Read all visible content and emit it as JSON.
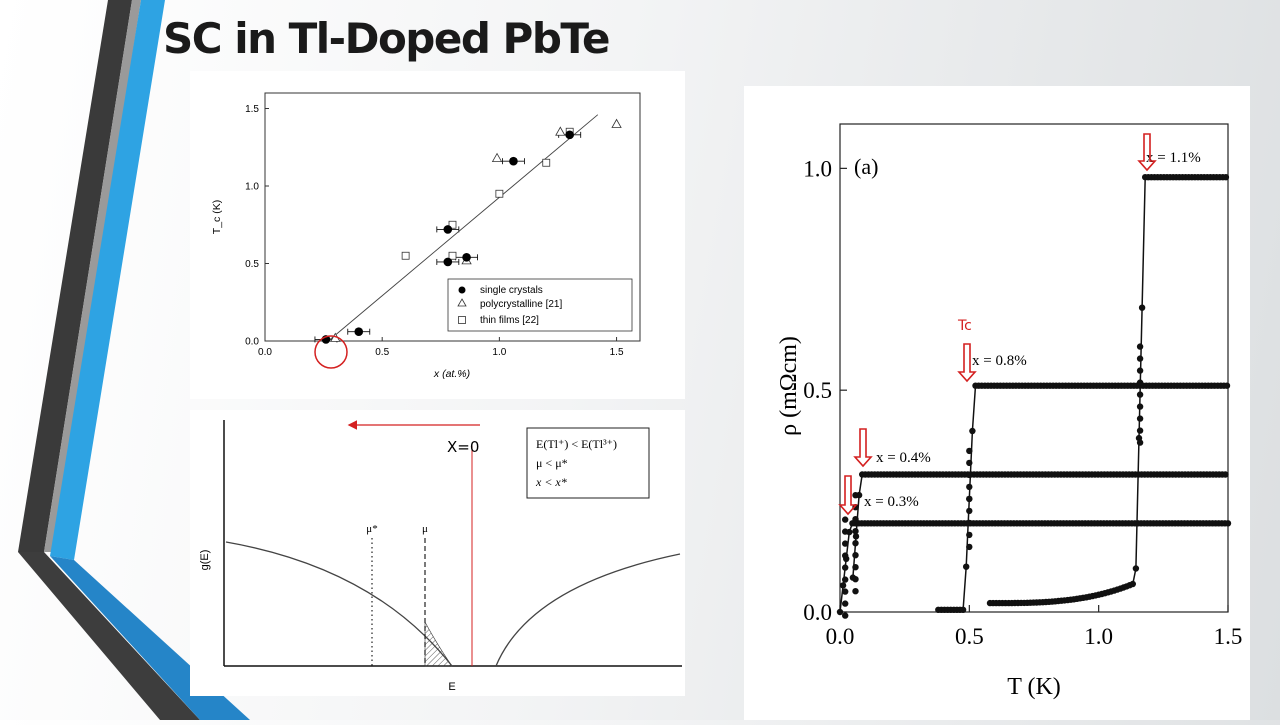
{
  "slide": {
    "title": "SC in Tl-Doped PbTe",
    "accent_colors": {
      "blue": "#2ea3e3",
      "dark": "#3d3d3d",
      "grey": "#8a8a8a",
      "annotation_red": "#d42020"
    }
  },
  "chart_data": [
    {
      "type": "scatter",
      "xlabel": "x (at.%)",
      "ylabel": "T_c (K)",
      "xlim": [
        0.0,
        1.6
      ],
      "ylim": [
        0.0,
        1.6
      ],
      "x_ticks": [
        "0.0",
        "0.5",
        "1.0",
        "1.5"
      ],
      "y_ticks": [
        "0.0",
        "0.5",
        "1.0",
        "1.5"
      ],
      "series": [
        {
          "name": "single crystals",
          "marker": "filled-circle",
          "points": [
            [
              0.26,
              0.01
            ],
            [
              0.4,
              0.06
            ],
            [
              0.78,
              0.51
            ],
            [
              0.78,
              0.72
            ],
            [
              0.86,
              0.54
            ],
            [
              1.06,
              1.16
            ],
            [
              1.3,
              1.33
            ]
          ]
        },
        {
          "name": "polycrystalline [21]",
          "marker": "triangle",
          "points": [
            [
              0.3,
              0.02
            ],
            [
              0.86,
              0.52
            ],
            [
              0.99,
              1.18
            ],
            [
              1.26,
              1.35
            ],
            [
              1.5,
              1.4
            ]
          ]
        },
        {
          "name": "thin films [22]",
          "marker": "square",
          "points": [
            [
              0.6,
              0.55
            ],
            [
              0.8,
              0.55
            ],
            [
              0.8,
              0.75
            ],
            [
              1.0,
              0.95
            ],
            [
              1.2,
              1.15
            ],
            [
              1.3,
              1.35
            ]
          ]
        }
      ],
      "fit_line": [
        [
          0.27,
          0.0
        ],
        [
          1.42,
          1.46
        ]
      ],
      "legend_position": "bottom-right",
      "annotation": "red circle at x ≈ 0.3 at.%"
    },
    {
      "type": "line",
      "ylabel": "g(E)",
      "xlabel": "E",
      "curves": "valence band (left) and conduction band (right) density of states",
      "markers": [
        "μ*",
        "μ"
      ],
      "legend_lines": [
        "E(Tl⁺) < E(Tl³⁺)",
        "μ < μ*",
        "x < x*"
      ],
      "annotation": "X=0"
    },
    {
      "type": "scatter",
      "panel_label": "(a)",
      "xlabel": "T (K)",
      "ylabel": "ρ (mΩcm)",
      "xlim": [
        0.0,
        1.5
      ],
      "ylim": [
        0.0,
        1.1
      ],
      "x_ticks": [
        "0.0",
        "0.5",
        "1.0",
        "1.5"
      ],
      "y_ticks": [
        "0.0",
        "0.5",
        "1.0"
      ],
      "series": [
        {
          "name": "x = 0.3%",
          "Tc": 0.02,
          "rho_normal": 0.2
        },
        {
          "name": "x = 0.4%",
          "Tc": 0.06,
          "rho_normal": 0.31
        },
        {
          "name": "x = 0.8%",
          "Tc": 0.5,
          "rho_normal": 0.51
        },
        {
          "name": "x = 1.1%",
          "Tc": 1.16,
          "rho_normal": 0.98
        }
      ],
      "annotation": "Tc"
    }
  ]
}
